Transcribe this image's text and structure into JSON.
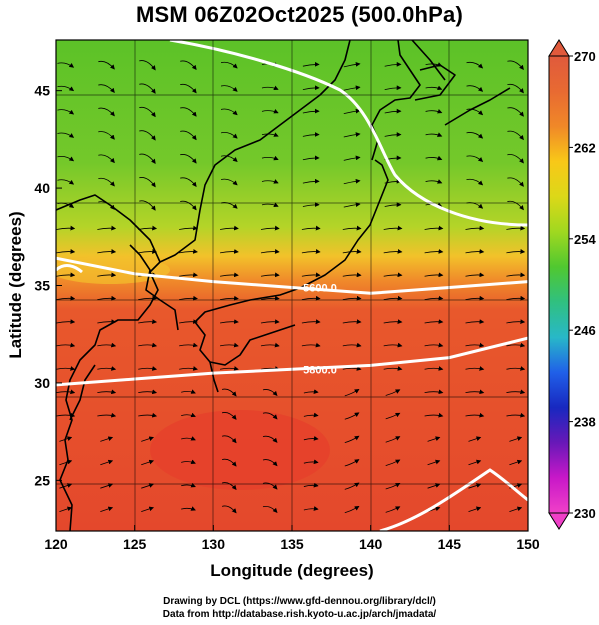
{
  "title": "MSM 06Z02Oct2025 (500.0hPa)",
  "x_axis": {
    "label": "Longitude (degrees)",
    "range": [
      120,
      150
    ],
    "ticks": [
      "120",
      "125",
      "130",
      "135",
      "140",
      "145",
      "150"
    ]
  },
  "y_axis": {
    "label": "Latitude  (degrees)",
    "range": [
      22.4,
      47.6
    ],
    "ticks": [
      "25",
      "30",
      "35",
      "40",
      "45"
    ]
  },
  "colorbar": {
    "range": [
      230,
      270
    ],
    "labels": [
      "270",
      "262",
      "254",
      "246",
      "238",
      "230"
    ],
    "colors": [
      "#e05a3c",
      "#e86a32",
      "#f08828",
      "#f8c818",
      "#dcd818",
      "#a0d820",
      "#50c830",
      "#30c080",
      "#28b8c8",
      "#2060e8",
      "#1828c0",
      "#6818b8",
      "#c818c8",
      "#f040c8"
    ]
  },
  "contours": [
    {
      "label": "5600.0",
      "lat_at": [
        [
          120,
          36.4
        ],
        [
          125,
          35.6
        ],
        [
          130,
          35.2
        ],
        [
          135,
          34.9
        ],
        [
          140,
          34.6
        ],
        [
          145,
          34.9
        ],
        [
          150,
          35.2
        ]
      ]
    },
    {
      "label": "5800.0",
      "lat_at": [
        [
          120,
          29.9
        ],
        [
          125,
          30.2
        ],
        [
          130,
          30.5
        ],
        [
          135,
          30.7
        ],
        [
          140,
          30.9
        ],
        [
          145,
          31.3
        ],
        [
          150,
          32.3
        ]
      ]
    }
  ],
  "credits": [
    "Drawing by DCL (https://www.gfd-dennou.org/library/dcl/)",
    "Data from http://database.rish.kyoto-u.ac.jp/arch/jmadata/"
  ]
}
